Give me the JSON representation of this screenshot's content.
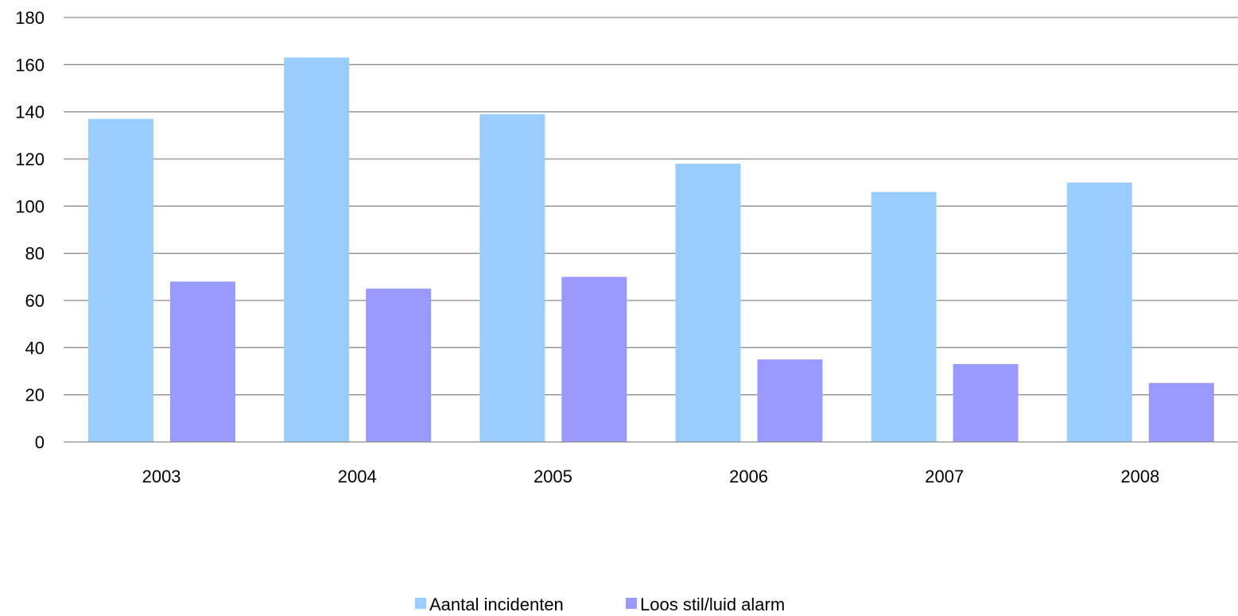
{
  "chart_data": {
    "type": "bar",
    "categories": [
      "2003",
      "2004",
      "2005",
      "2006",
      "2007",
      "2008"
    ],
    "series": [
      {
        "name": "Aantal incidenten",
        "color": "#99ccff",
        "values": [
          137,
          163,
          139,
          118,
          106,
          110
        ]
      },
      {
        "name": "Loos stil/luid alarm",
        "color": "#9999ff",
        "values": [
          68,
          65,
          70,
          35,
          33,
          25
        ]
      }
    ],
    "ylim": [
      0,
      180
    ],
    "yticks": [
      0,
      20,
      40,
      60,
      80,
      100,
      120,
      140,
      160,
      180
    ],
    "grid": true,
    "legend_position": "bottom-center"
  }
}
